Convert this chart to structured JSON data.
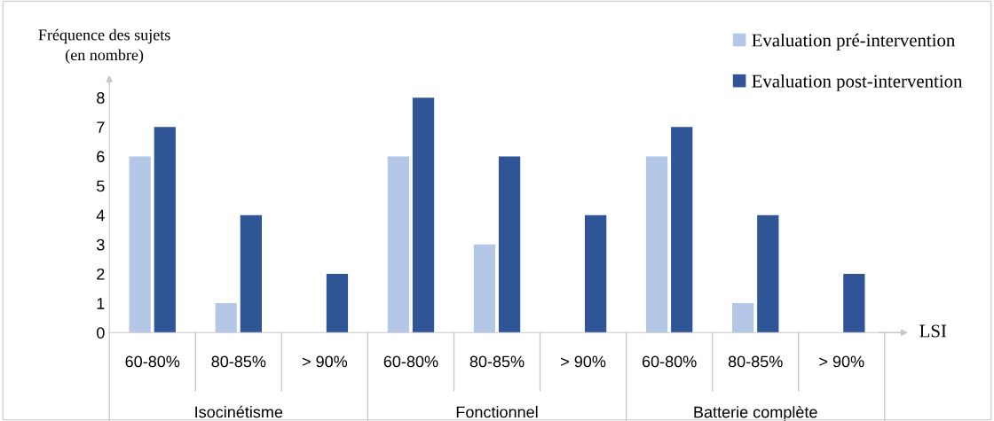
{
  "chart_data": {
    "type": "bar",
    "ylabel": "Fréquence des sujets\n(en nombre)",
    "xlabel": "LSI",
    "categories": [
      "60-80%",
      "80-85%",
      "> 90%",
      "60-80%",
      "80-85%",
      "> 90%",
      "60-80%",
      "80-85%",
      "> 90%"
    ],
    "series": [
      {
        "name": "Evaluation pré-intervention",
        "color": "#b4c7e7",
        "values": [
          6,
          1,
          0,
          6,
          3,
          0,
          6,
          1,
          0
        ]
      },
      {
        "name": "Evaluation post-intervention",
        "color": "#2f5597",
        "values": [
          7,
          4,
          2,
          8,
          6,
          4,
          7,
          4,
          2
        ]
      }
    ],
    "annotations": [
      "Isocinétisme",
      "Fonctionnel",
      "Batterie complète"
    ],
    "ylim": [
      0,
      8.6
    ],
    "yticks": [
      0,
      1,
      2,
      3,
      4,
      5,
      6,
      7,
      8
    ],
    "grid": false,
    "legend": "top right"
  }
}
